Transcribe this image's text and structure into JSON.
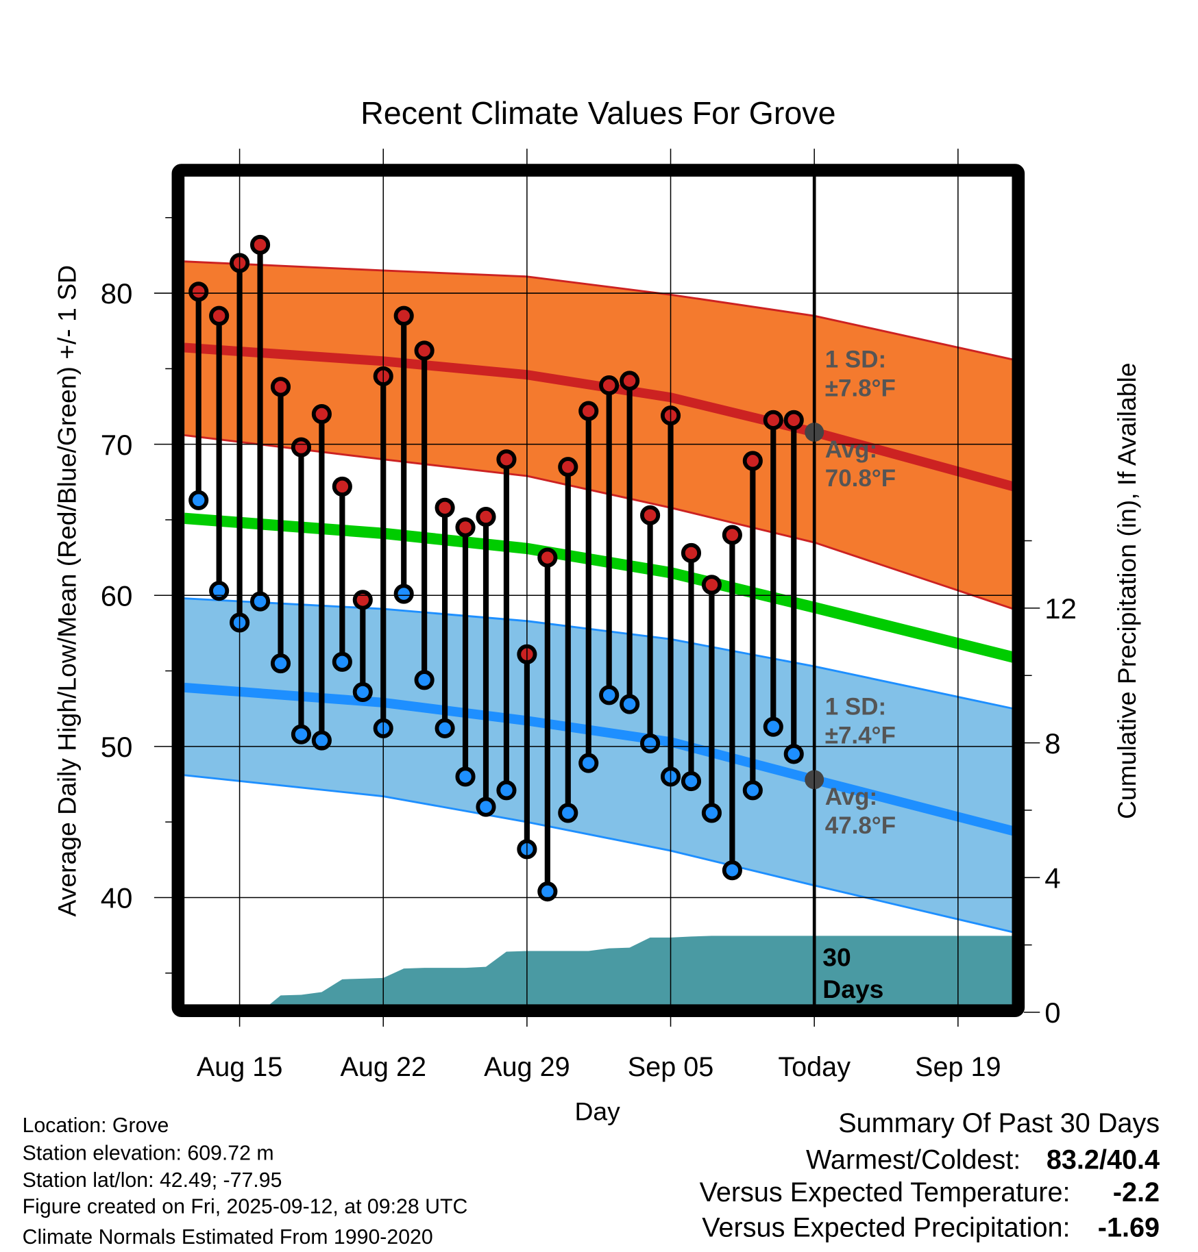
{
  "chart_data": {
    "type": "line",
    "title": "Recent Climate Values For Grove",
    "xlabel": "Day",
    "ylabel": "Average Daily High/Low/Mean (Red/Blue/Green) +/- 1 SD",
    "y2label": "Cumulative Precipitation (in), If Available",
    "ylim": [
      33.0,
      87.8
    ],
    "y2lim": [
      0,
      16
    ],
    "grid": true,
    "x_ticks": [
      "Aug 15",
      "Aug 22",
      "Aug 29",
      "Sep 05",
      "Today",
      "Sep 19"
    ],
    "x_tick_days": [
      0,
      7,
      14,
      21,
      28,
      35
    ],
    "y_ticks": [
      "40",
      "50",
      "60",
      "70",
      "80"
    ],
    "y_tick_values": [
      40,
      50,
      60,
      70,
      80
    ],
    "y2_ticks": [
      "0",
      "4",
      "8",
      "12"
    ],
    "y2_tick_values": [
      0,
      4,
      8,
      12
    ],
    "x_range_days": [
      -2.7,
      37.7
    ],
    "today_day": 28,
    "daily": {
      "days": [
        -2,
        -1,
        0,
        1,
        2,
        3,
        4,
        5,
        6,
        7,
        8,
        9,
        10,
        11,
        12,
        13,
        14,
        15,
        16,
        17,
        18,
        19,
        20,
        21,
        22,
        23,
        24,
        25,
        26,
        27
      ],
      "high": [
        80.1,
        78.5,
        82.0,
        83.2,
        73.8,
        69.8,
        72.0,
        67.2,
        59.7,
        74.5,
        78.5,
        76.2,
        65.8,
        64.5,
        65.2,
        69.0,
        56.1,
        62.5,
        68.5,
        72.2,
        73.9,
        74.2,
        65.3,
        71.9,
        62.8,
        60.7,
        64.0,
        68.9,
        71.6,
        71.6
      ],
      "low": [
        66.3,
        60.3,
        58.2,
        59.6,
        55.5,
        50.8,
        50.4,
        55.6,
        53.6,
        51.2,
        60.1,
        54.4,
        51.2,
        48.0,
        46.0,
        47.1,
        43.2,
        40.4,
        45.6,
        48.9,
        53.4,
        52.8,
        50.2,
        48.0,
        47.7,
        45.6,
        41.8,
        47.1,
        51.3,
        49.5
      ],
      "cumulative_precip_in": [
        0,
        0,
        0,
        0,
        0.5,
        0.52,
        0.6,
        0.98,
        1.0,
        1.02,
        1.3,
        1.32,
        1.32,
        1.32,
        1.35,
        1.8,
        1.82,
        1.82,
        1.82,
        1.82,
        1.9,
        1.92,
        2.22,
        2.22,
        2.25,
        2.27,
        2.27,
        2.27,
        2.27,
        2.27
      ]
    },
    "normals": {
      "days": [
        -2.7,
        7,
        14,
        21,
        28,
        37.7
      ],
      "high_upper": [
        82.1,
        81.5,
        81.1,
        79.9,
        78.5,
        75.6
      ],
      "high_avg": [
        76.4,
        75.5,
        74.6,
        73.1,
        70.8,
        67.2
      ],
      "high_lower": [
        70.6,
        69.0,
        67.9,
        65.8,
        63.5,
        59.1
      ],
      "mean": [
        65.1,
        64.1,
        63.1,
        61.5,
        59.2,
        55.9
      ],
      "low_upper": [
        59.8,
        59.1,
        58.3,
        57.1,
        55.3,
        52.5
      ],
      "low_avg": [
        53.9,
        52.9,
        51.7,
        50.3,
        47.8,
        44.4
      ],
      "low_lower": [
        48.1,
        46.7,
        45.0,
        43.1,
        40.8,
        37.7
      ]
    },
    "annotations": {
      "high_sd_title": "1 SD:",
      "high_sd_value": "±7.8°F",
      "high_avg_title": "Avg:",
      "high_avg_value": "70.8°F",
      "low_sd_title": "1 SD:",
      "low_sd_value": "±7.4°F",
      "low_avg_title": "Avg:",
      "low_avg_value": "47.8°F",
      "window_count": "30",
      "window_unit": "Days"
    },
    "today_markers": {
      "high_avg": 70.8,
      "low_avg": 47.8
    },
    "colors": {
      "high_band": "#f47a2e",
      "high_line": "#cc2222",
      "mean_line": "#00cc00",
      "low_band": "#82c1e8",
      "low_line": "#1e8fff",
      "precip": "#4a9aa3",
      "high_dot": "#cc2222",
      "low_dot": "#1e8fff",
      "annotation": "#555555"
    }
  },
  "footer": {
    "lines": [
      "Location: Grove",
      "Station elevation: 609.72 m",
      "Station lat/lon: 42.49; -77.95",
      "Figure created on Fri, 2025-09-12, at 09:28 UTC",
      "Climate Normals Estimated From 1990-2020"
    ]
  },
  "summary": {
    "title": "Summary Of Past 30 Days",
    "warm_cold_label": "Warmest/Coldest:",
    "warm_cold_value": "83.2/40.4",
    "temp_label": "Versus Expected Temperature:",
    "temp_value": "-2.2",
    "temp_color": "#1e8fff",
    "precip_label": "Versus Expected Precipitation:",
    "precip_value": "-1.69",
    "precip_color": "#a0522d"
  }
}
